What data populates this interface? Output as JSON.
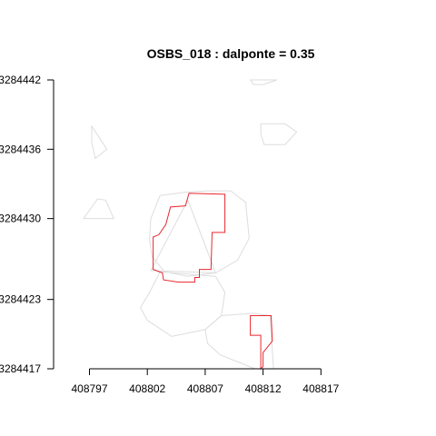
{
  "chart_data": {
    "type": "scatter",
    "title": "OSBS_018 : dalponte = 0.35",
    "xlabel": "",
    "ylabel": "",
    "xlim": [
      408793.9,
      408820.9
    ],
    "ylim": [
      3284417,
      3284442
    ],
    "x_ticks": [
      408797,
      408802,
      408807,
      408812,
      408817
    ],
    "x_tick_labels": [
      "408797",
      "408802",
      "408807",
      "408812",
      "408817"
    ],
    "y_ticks": [
      3284417,
      3284423,
      3284430,
      3284436,
      3284442
    ],
    "y_tick_labels": [
      "3284417",
      "3284423",
      "3284430",
      "3284436",
      "3284442"
    ],
    "grid": false,
    "colors": {
      "predicted": "#dddddd",
      "ground_truth": "#e8282f"
    },
    "series": [
      {
        "role": "predicted",
        "polygon": [
          [
            408810.9,
            3284442
          ],
          [
            408813.2,
            3284442
          ],
          [
            408812.0,
            3284441.6
          ],
          [
            408811.2,
            3284441.6
          ]
        ]
      },
      {
        "role": "predicted",
        "polygon": [
          [
            408811.8,
            3284438.2
          ],
          [
            408813.9,
            3284438.2
          ],
          [
            408814.9,
            3284437.5
          ],
          [
            408813.9,
            3284436.4
          ],
          [
            408812.1,
            3284436.4
          ],
          [
            408811.8,
            3284437.3
          ]
        ]
      },
      {
        "role": "predicted",
        "polygon": [
          [
            408797.2,
            3284438.0
          ],
          [
            408798.5,
            3284436.0
          ],
          [
            408797.5,
            3284435.2
          ],
          [
            408797.2,
            3284436.6
          ]
        ]
      },
      {
        "role": "predicted",
        "polygon": [
          [
            408796.5,
            3284430.0
          ],
          [
            408799.1,
            3284430.0
          ],
          [
            408798.4,
            3284431.6
          ],
          [
            408797.7,
            3284431.7
          ]
        ]
      },
      {
        "role": "predicted",
        "polygon": [
          [
            408803.1,
            3284432.0
          ],
          [
            408805.4,
            3284432.3
          ],
          [
            408807.2,
            3284432.4
          ],
          [
            408809.2,
            3284432.4
          ],
          [
            408810.5,
            3284431.4
          ],
          [
            408810.8,
            3284428.3
          ],
          [
            408809.8,
            3284426.4
          ],
          [
            408807.9,
            3284425.3
          ],
          [
            408805.5,
            3284425.0
          ],
          [
            408803.5,
            3284425.4
          ],
          [
            408802.4,
            3284426.7
          ],
          [
            408802.2,
            3284428.2
          ],
          [
            408802.3,
            3284430.0
          ]
        ]
      },
      {
        "role": "predicted",
        "polygon": [
          [
            408805.5,
            3284431.6
          ],
          [
            408802.3,
            3284425.5
          ],
          [
            408807.9,
            3284425.3
          ]
        ]
      },
      {
        "role": "predicted",
        "polygon": [
          [
            408803.1,
            3284425.4
          ],
          [
            408807.9,
            3284425.0
          ],
          [
            408808.7,
            3284423.6
          ],
          [
            408808.4,
            3284421.6
          ],
          [
            408807.0,
            3284420.4
          ],
          [
            408804.1,
            3284419.8
          ],
          [
            408802.0,
            3284421.2
          ],
          [
            408801.4,
            3284422.3
          ],
          [
            408802.2,
            3284423.6
          ]
        ]
      },
      {
        "role": "predicted",
        "polygon": [
          [
            408808.4,
            3284421.6
          ],
          [
            408811.2,
            3284421.8
          ],
          [
            408812.6,
            3284421.6
          ],
          [
            408812.9,
            3284417.0
          ],
          [
            408811.3,
            3284417.0
          ],
          [
            408808.3,
            3284418.2
          ],
          [
            408807.2,
            3284419.2
          ],
          [
            408807.0,
            3284420.4
          ]
        ]
      },
      {
        "role": "ground_truth",
        "polygon": [
          [
            408805.6,
            3284432.2
          ],
          [
            408808.7,
            3284432.1
          ],
          [
            408808.7,
            3284428.8
          ],
          [
            408807.6,
            3284428.8
          ],
          [
            408807.5,
            3284425.6
          ],
          [
            408806.5,
            3284425.6
          ],
          [
            408806.5,
            3284424.9
          ],
          [
            408806.1,
            3284424.9
          ],
          [
            408806.1,
            3284424.5
          ],
          [
            408804.7,
            3284424.5
          ],
          [
            408803.4,
            3284424.7
          ],
          [
            408803.3,
            3284425.3
          ],
          [
            408802.5,
            3284425.6
          ],
          [
            408802.5,
            3284428.4
          ],
          [
            408803.0,
            3284428.6
          ],
          [
            408803.6,
            3284429.5
          ],
          [
            408804.0,
            3284431.0
          ],
          [
            408805.3,
            3284431.1
          ]
        ]
      },
      {
        "role": "ground_truth",
        "polygon": [
          [
            408810.9,
            3284421.6
          ],
          [
            408812.7,
            3284421.6
          ],
          [
            408812.8,
            3284419.4
          ],
          [
            408812.0,
            3284418.4
          ],
          [
            408812.0,
            3284417.2
          ],
          [
            408811.8,
            3284417.0
          ],
          [
            408811.8,
            3284419.3
          ],
          [
            408811.8,
            3284419.9
          ],
          [
            408810.9,
            3284419.9
          ]
        ]
      }
    ]
  }
}
